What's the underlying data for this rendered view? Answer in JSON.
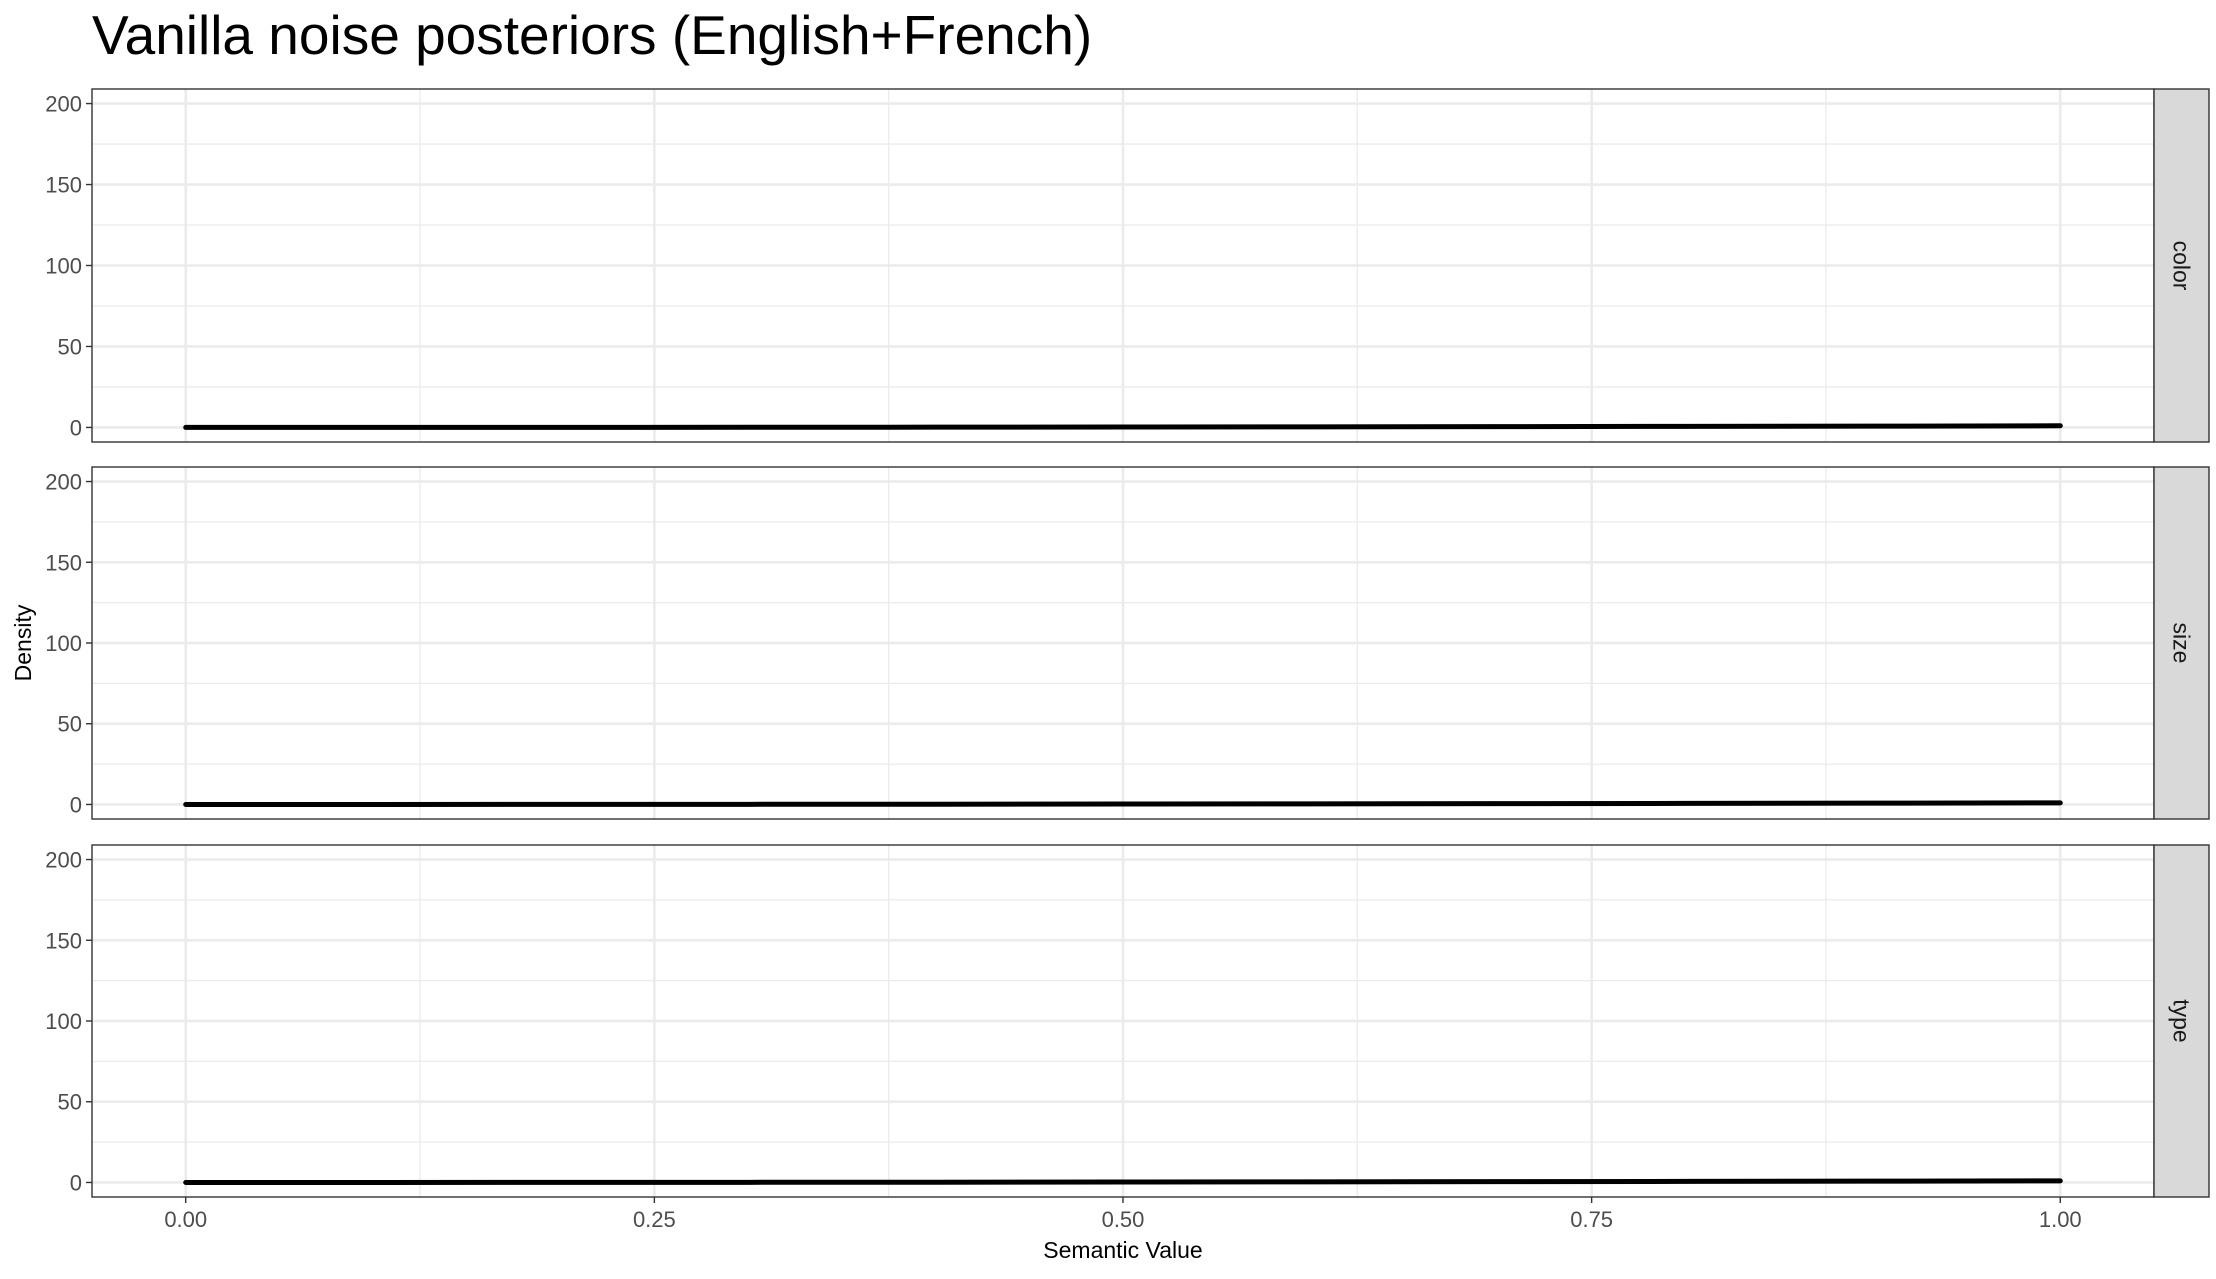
{
  "chart_data": {
    "type": "line",
    "title": "Vanilla noise posteriors (English+French)",
    "xlabel": "Semantic Value",
    "ylabel": "Density",
    "xlim": [
      -0.05,
      1.05
    ],
    "ylim": [
      -9,
      209
    ],
    "x_ticks": [
      0,
      0.25,
      0.5,
      0.75,
      1
    ],
    "x_tick_labels": [
      "0.00",
      "0.25",
      "0.50",
      "0.75",
      "1.00"
    ],
    "y_ticks": [
      0,
      50,
      100,
      150,
      200
    ],
    "y_tick_labels": [
      "0",
      "50",
      "100",
      "150",
      "200"
    ],
    "grid": true,
    "legend": "none",
    "facets": [
      {
        "label": "color",
        "series": [
          {
            "x": [
              0,
              0.1,
              0.2,
              0.3,
              0.4,
              0.5,
              0.6,
              0.7,
              0.8,
              0.9,
              1.0
            ],
            "values": [
              0,
              0.01,
              0.04,
              0.09,
              0.16,
              0.25,
              0.36,
              0.49,
              0.64,
              0.81,
              1.0
            ]
          }
        ]
      },
      {
        "label": "size",
        "series": [
          {
            "x": [
              0,
              0.1,
              0.2,
              0.3,
              0.4,
              0.5,
              0.6,
              0.7,
              0.8,
              0.9,
              1.0
            ],
            "values": [
              0,
              0.01,
              0.04,
              0.09,
              0.16,
              0.25,
              0.36,
              0.49,
              0.64,
              0.81,
              1.0
            ]
          }
        ]
      },
      {
        "label": "type",
        "series": [
          {
            "x": [
              0,
              0.1,
              0.2,
              0.3,
              0.4,
              0.5,
              0.6,
              0.7,
              0.8,
              0.9,
              1.0
            ],
            "values": [
              0,
              0.01,
              0.04,
              0.09,
              0.16,
              0.25,
              0.36,
              0.49,
              0.64,
              0.81,
              1.0
            ]
          }
        ]
      }
    ]
  }
}
